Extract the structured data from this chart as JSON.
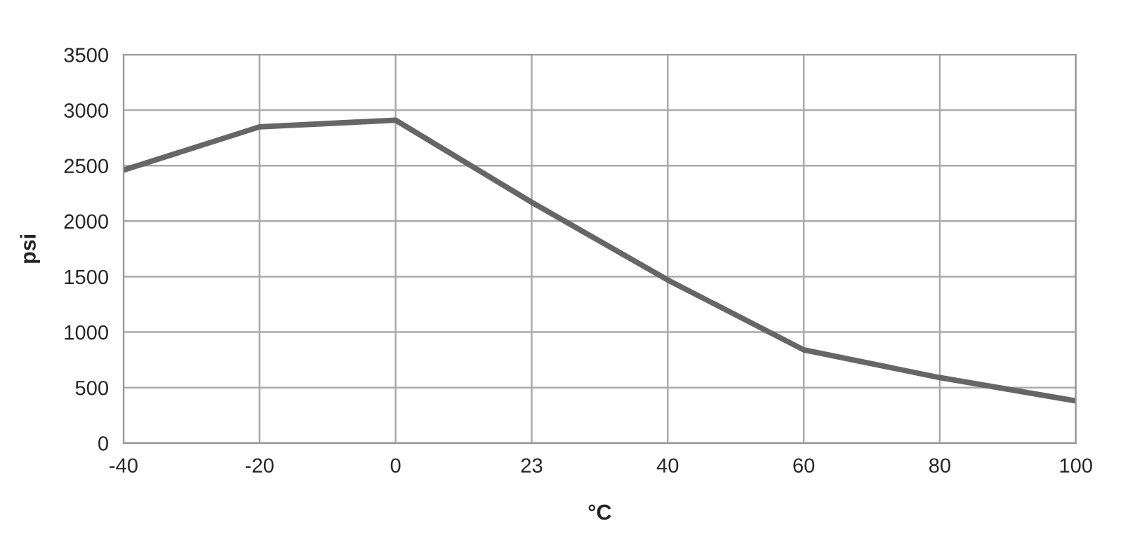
{
  "chart_data": {
    "type": "line",
    "xlabel": "°C",
    "ylabel": "psi",
    "categories": [
      "-40",
      "-20",
      "0",
      "23",
      "40",
      "60",
      "80",
      "100"
    ],
    "series": [
      {
        "color": "#666666",
        "values": [
          2460,
          2850,
          2910,
          2170,
          1470,
          840,
          590,
          380
        ]
      }
    ],
    "ylim": [
      0,
      3500
    ],
    "yticks": [
      0,
      500,
      1000,
      1500,
      2000,
      2500,
      3000,
      3500
    ],
    "grid": true,
    "marker": "none",
    "line_style": "solid"
  }
}
